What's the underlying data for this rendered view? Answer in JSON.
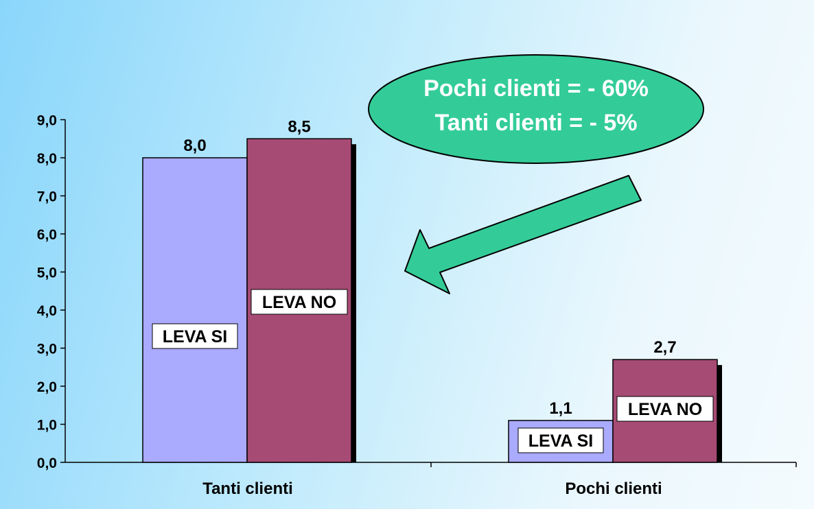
{
  "chart_data": {
    "type": "bar",
    "categories": [
      "Tanti clienti",
      "Pochi clienti"
    ],
    "series": [
      {
        "name": "LEVA SI",
        "values": [
          8.0,
          1.1
        ],
        "value_labels": [
          "8,0",
          "1,1"
        ],
        "color": "#aaaaff"
      },
      {
        "name": "LEVA NO",
        "values": [
          8.5,
          2.7
        ],
        "value_labels": [
          "8,5",
          "2,7"
        ],
        "color": "#a64b74"
      }
    ],
    "y_ticks": [
      "0,0",
      "1,0",
      "2,0",
      "3,0",
      "4,0",
      "5,0",
      "6,0",
      "7,0",
      "8,0",
      "9,0"
    ],
    "ylim": [
      0,
      9
    ],
    "title": "",
    "xlabel": "",
    "ylabel": "",
    "grid": false,
    "annotation": {
      "lines": [
        "Pochi clienti = - 60%",
        "Tanti clienti = - 5%"
      ],
      "fill_color": "#33cc99",
      "text_color": "#ffffff",
      "arrow_color": "#33cc99"
    }
  }
}
